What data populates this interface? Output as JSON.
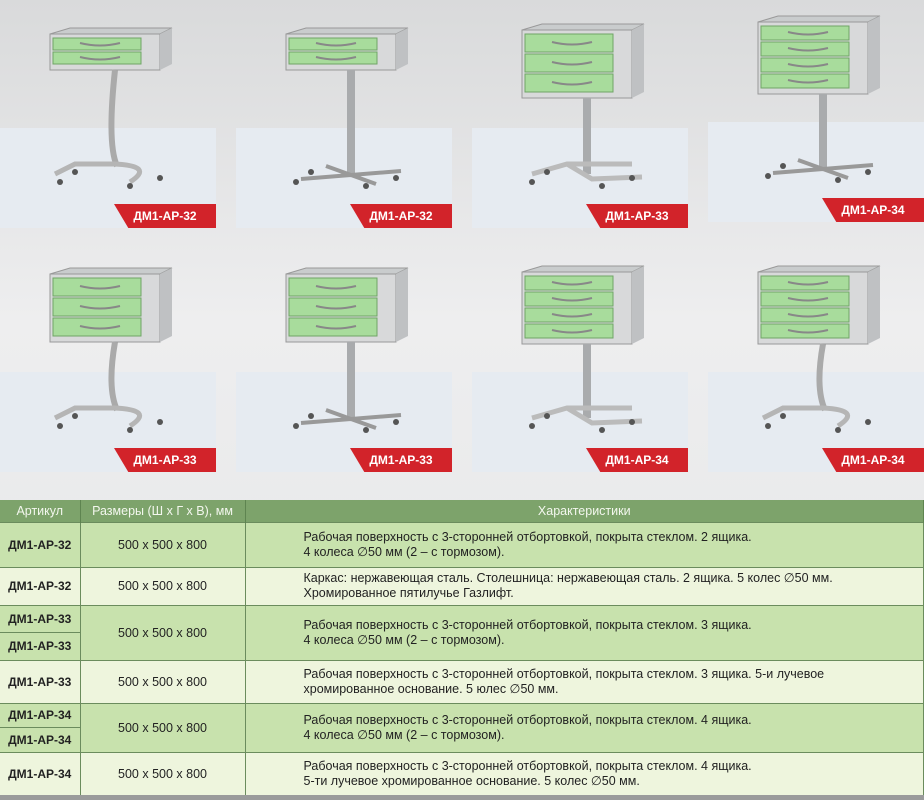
{
  "products": [
    {
      "label": "ДМ1-АР-32",
      "drawers": 2,
      "base": "c-shape"
    },
    {
      "label": "ДМ1-АР-32",
      "drawers": 2,
      "base": "star"
    },
    {
      "label": "ДМ1-АР-33",
      "drawers": 3,
      "base": "t-shape"
    },
    {
      "label": "ДМ1-АР-34",
      "drawers": 4,
      "base": "star"
    },
    {
      "label": "ДМ1-АР-33",
      "drawers": 3,
      "base": "c-shape"
    },
    {
      "label": "ДМ1-АР-33",
      "drawers": 3,
      "base": "star"
    },
    {
      "label": "ДМ1-АР-34",
      "drawers": 4,
      "base": "t-shape"
    },
    {
      "label": "ДМ1-АР-34",
      "drawers": 4,
      "base": "c-shape"
    }
  ],
  "colors": {
    "drawer": "#a8dc9c",
    "frame": "#d8d9da",
    "tag": "#d2232a",
    "header": "#7da36b"
  },
  "table": {
    "headers": [
      "Артикул",
      "Размеры (Ш х Г х В), мм",
      "Характеристики"
    ],
    "rows": [
      {
        "articles": [
          "ДМ1-АР-32"
        ],
        "size": "500 x 500 x 800",
        "desc": [
          "Рабочая поверхность с 3-сторонней отбортовкой, покрыта стеклом. 2 ящика.",
          "4 колеса ∅50 мм (2 – с тормозом)."
        ],
        "shade": "g"
      },
      {
        "articles": [
          "ДМ1-АР-32"
        ],
        "size": "500 x 500 x 800",
        "desc": [
          "Каркас: нержавеющая сталь. Столешница: нержавеющая сталь. 2 ящика. 5 колес ∅50 мм.",
          "Хромированное пятилучье Газлифт."
        ],
        "shade": "l"
      },
      {
        "articles": [
          "ДМ1-АР-33",
          "ДМ1-АР-33"
        ],
        "size": "500 x 500 x 800",
        "desc": [
          "Рабочая поверхность с 3-сторонней отбортовкой, покрыта стеклом. 3 ящика.",
          "4 колеса ∅50 мм (2 – с тормозом)."
        ],
        "shade": "g"
      },
      {
        "articles": [
          "ДМ1-АР-33"
        ],
        "size": "500 x 500 x 800",
        "desc": [
          "Рабочая поверхность с 3-сторонней отбортовкой, покрыта стеклом. 3 ящика. 5-и лучевое",
          "хромированное основание. 5 юлес ∅50 мм."
        ],
        "shade": "l"
      },
      {
        "articles": [
          "ДМ1-АР-34",
          "ДМ1-АР-34"
        ],
        "size": "500 x 500 x 800",
        "desc": [
          "Рабочая поверхность с 3-сторонней отбортовкой, покрыта стеклом. 4 ящика.",
          "4 колеса ∅50 мм (2 – с тормозом)."
        ],
        "shade": "g"
      },
      {
        "articles": [
          "ДМ1-АР-34"
        ],
        "size": "500 x 500 x 800",
        "desc": [
          "Рабочая поверхность с 3-сторонней отбортовкой, покрыта стеклом. 4 ящика.",
          "5-ти лучевое хромированное основание. 5 колес ∅50 мм."
        ],
        "shade": "l"
      }
    ]
  }
}
